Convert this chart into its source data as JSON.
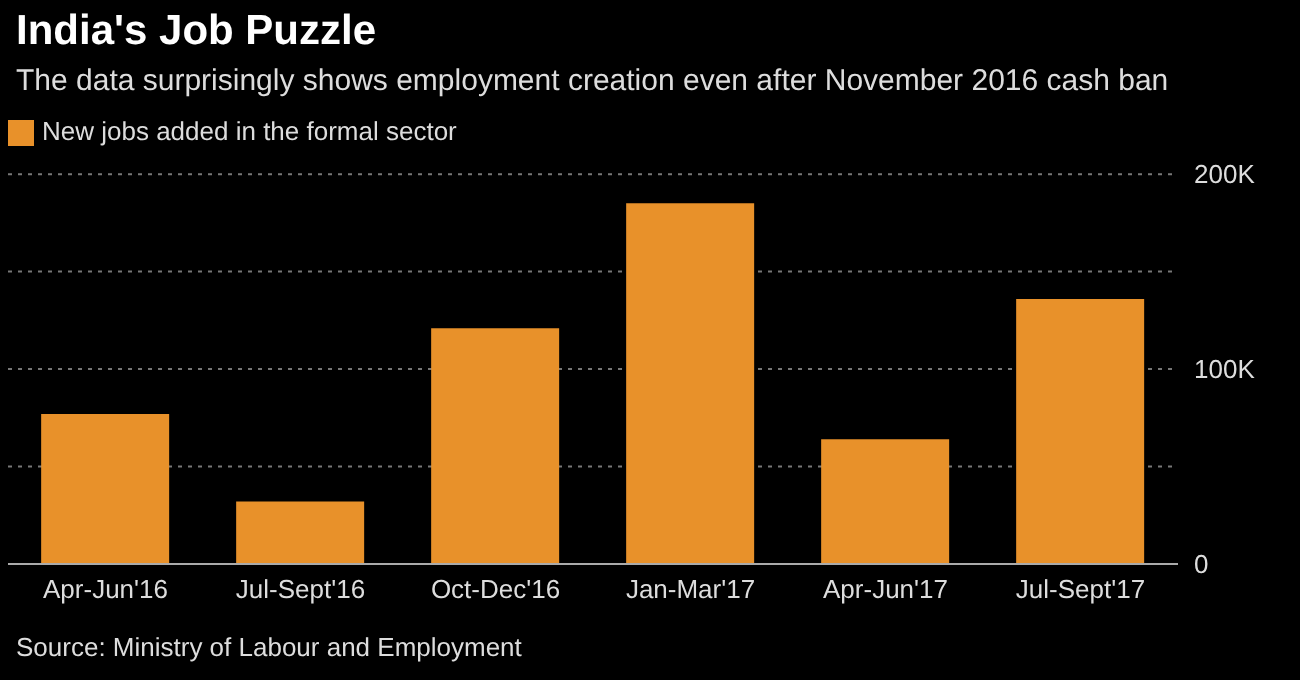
{
  "chart_data": {
    "type": "bar",
    "title": "India's Job Puzzle",
    "subtitle": "The data surprisingly shows employment creation even after November 2016 cash ban",
    "categories": [
      "Apr-Jun'16",
      "Jul-Sept'16",
      "Oct-Dec'16",
      "Jan-Mar'17",
      "Apr-Jun'17",
      "Jul-Sept'17"
    ],
    "series": [
      {
        "name": "New jobs added in the formal sector",
        "color": "#e8912a",
        "values": [
          77000,
          32000,
          121000,
          185000,
          64000,
          136000
        ]
      }
    ],
    "ylim": [
      0,
      200000
    ],
    "yticks": [
      {
        "value": 0,
        "label": "0"
      },
      {
        "value": 50000,
        "label": null
      },
      {
        "value": 100000,
        "label": "100K"
      },
      {
        "value": 150000,
        "label": null
      },
      {
        "value": 200000,
        "label": "200K"
      }
    ],
    "grid": "y",
    "legend": "top left",
    "annotations": [
      "Source: Ministry of Labour and Employment"
    ]
  }
}
